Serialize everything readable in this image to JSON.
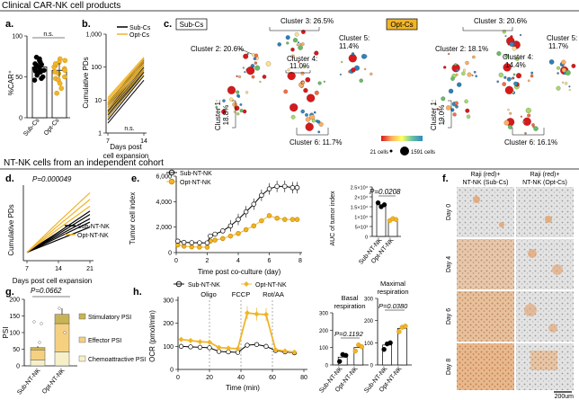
{
  "figure": {
    "section1_title": "Clinical CAR-NK cell products",
    "section2_title": "NT-NK cells from an independent cohort",
    "colors": {
      "sub": "#000000",
      "opt": "#f0b429",
      "gray": "#999999"
    }
  },
  "panels": {
    "a": {
      "label": "a.",
      "ylabel": "%CAR⁺",
      "sig": "n.s."
    },
    "b": {
      "label": "b.",
      "ylabel": "Cumulative PDs",
      "xlabel_1": "Days post",
      "xlabel_2": "cell expansion",
      "sig": "n.s.",
      "legend": [
        "Sub-Cs",
        "Opt-Cs"
      ]
    },
    "c": {
      "label": "c.",
      "sub_tag": "Sub-Cs",
      "opt_tag": "Opt-Cs",
      "sub_clusters": [
        "Cluster 1:",
        "18.8%",
        "Cluster 2: 20.6%",
        "Cluster 3: 26.5%",
        "Cluster 4:",
        "11.0%",
        "Cluster 5:",
        "11.4%",
        "Cluster 6: 11.7%"
      ],
      "opt_clusters": [
        "Cluster 1:",
        "19.0%",
        "Cluster 2: 18.1%",
        "Cluster 3: 20.6%",
        "Cluster 4:",
        "14.4%",
        "Cluster 5:",
        "11.7%",
        "Cluster 6: 16.1%"
      ],
      "size_legend_min": "21 cells",
      "size_legend_max": "1591 cells"
    },
    "d": {
      "label": "d.",
      "pvalue": "P=0.000049",
      "ylabel": "Cumulative PDs",
      "xlabel": "Days post cell expansion",
      "legend": [
        "Sub-NT-NK",
        "Opt-NT-NK"
      ]
    },
    "e": {
      "label": "e.",
      "legend": [
        "Sub-NT-NK",
        "Opt-NT-NK"
      ],
      "ylabel": "Tumor cell index",
      "xlabel": "Time post co-culture (day)",
      "auc_ylabel": "AUC of tumor index",
      "auc_pvalue": "P=0.0208"
    },
    "f": {
      "label": "f.",
      "col1_line1": "Raji (red)+",
      "col1_line2": "NT-NK (Sub-Cs)",
      "col2_line1": "Raji (red)+",
      "col2_line2": "NT-NK (Opt-Cs)",
      "rows": [
        "Day 0",
        "Day 4",
        "Day 6",
        "Day 8"
      ],
      "scalebar": "200um"
    },
    "g": {
      "label": "g.",
      "pvalue": "P=0.0662",
      "ylabel": "PSI",
      "legend": [
        "Stimulatory PSI",
        "Effector PSI",
        "Chemoattractive PSI"
      ]
    },
    "h": {
      "label": "h.",
      "legend": [
        "Sub-NT-NK",
        "Opt-NT-NK"
      ],
      "ylabel": "OCR (pmol/min)",
      "xlabel": "Time (min)",
      "injections": [
        "Oligo",
        "FCCP",
        "Rot/AA"
      ],
      "basal_title": "Basal",
      "basal_title2": "respiration",
      "basal_pvalue": "P=0.1192",
      "maximal_title": "Maximal",
      "maximal_title2": "respiration",
      "maximal_pvalue": "P=0.0380"
    }
  },
  "chart_data": [
    {
      "panel": "a",
      "type": "bar",
      "categories": [
        "Sub-Cs",
        "Opt-Cs"
      ],
      "values": [
        62,
        58
      ],
      "points": [
        [
          70,
          68,
          66,
          64,
          62,
          60,
          60,
          58,
          56,
          55,
          52,
          50,
          48,
          46,
          72,
          74,
          65,
          57
        ],
        [
          72,
          68,
          64,
          62,
          60,
          58,
          56,
          54,
          50,
          48,
          46,
          42,
          36,
          30,
          66,
          70
        ]
      ],
      "ylabel": "%CAR⁺",
      "ylim": [
        0,
        100
      ],
      "yticks": [
        0,
        50,
        100
      ]
    },
    {
      "panel": "b",
      "type": "line",
      "x": [
        7,
        14
      ],
      "series": [
        {
          "name": "Sub-Cs",
          "starts": [
            2,
            2.5,
            3,
            3.5,
            4,
            4.5,
            5,
            6,
            7,
            8
          ],
          "ends": [
            40,
            55,
            70,
            80,
            90,
            100,
            120,
            140,
            160,
            180
          ]
        },
        {
          "name": "Opt-Cs",
          "starts": [
            3,
            4,
            5,
            6,
            7,
            8,
            9,
            10,
            11,
            12
          ],
          "ends": [
            60,
            80,
            90,
            110,
            120,
            130,
            150,
            170,
            180,
            200
          ]
        }
      ],
      "ylabel": "Cumulative PDs",
      "ylim": [
        1,
        1000
      ],
      "yticks": [
        1,
        10,
        100,
        1000
      ],
      "yscale": "log",
      "xlabel": "Days post cell expansion"
    },
    {
      "panel": "d",
      "type": "line",
      "x": [
        7,
        14,
        21
      ],
      "xticks": [
        7,
        14,
        21
      ],
      "series": [
        {
          "name": "Sub-NT-NK",
          "lines": [
            [
              1,
              2.5,
              4.0
            ],
            [
              1,
              2.8,
              4.6
            ],
            [
              1,
              3.0,
              5.0
            ],
            [
              1,
              3.2,
              5.5
            ],
            [
              1,
              3.4,
              5.9
            ]
          ]
        },
        {
          "name": "Opt-NT-NK",
          "lines": [
            [
              1,
              3.8,
              6.5
            ],
            [
              1,
              4.2,
              7.3
            ],
            [
              1,
              4.6,
              8.1
            ]
          ]
        }
      ],
      "ylabel": "Cumulative PDs",
      "ylim": [
        0,
        9
      ],
      "yticks": [],
      "xlabel": "Days post cell expansion"
    },
    {
      "panel": "e",
      "type": "line",
      "series": [
        {
          "name": "Sub-NT-NK",
          "x": [
            0.1,
            0.5,
            1.0,
            1.5,
            2.0,
            2.2,
            2.5,
            3.0,
            3.5,
            4.0,
            4.5,
            5.0,
            5.5,
            6.0,
            6.5,
            7.0,
            7.5,
            7.8
          ],
          "y": [
            900,
            800,
            780,
            770,
            760,
            1300,
            1450,
            1700,
            2100,
            2600,
            3200,
            3800,
            4500,
            5000,
            5200,
            5200,
            5100,
            5100
          ]
        },
        {
          "name": "Opt-NT-NK",
          "x": [
            0.1,
            0.5,
            1.0,
            1.5,
            2.0,
            2.2,
            2.5,
            3.0,
            3.5,
            4.0,
            4.5,
            5.0,
            5.5,
            6.0,
            6.5,
            7.0,
            7.5,
            7.8
          ],
          "y": [
            600,
            500,
            450,
            430,
            420,
            900,
            980,
            1100,
            1300,
            1500,
            1800,
            2100,
            2500,
            2900,
            2700,
            2600,
            2600,
            2600
          ]
        }
      ],
      "ylabel": "Tumor cell index",
      "ylim": [
        0,
        6000
      ],
      "yticks": [
        0,
        2000,
        4000,
        6000
      ],
      "xlabel": "Time post co-culture (day)",
      "xlim": [
        0,
        8
      ],
      "xticks": [
        0,
        2,
        4,
        6,
        8
      ]
    },
    {
      "panel": "e-auc",
      "type": "bar",
      "categories": [
        "Sub-NT-NK",
        "Opt-NT-NK"
      ],
      "values": [
        16000,
        8500
      ],
      "points": [
        [
          17000,
          15000,
          16000
        ],
        [
          8000,
          9000,
          8500
        ]
      ],
      "ylabel": "AUC of tumor index",
      "ylim": [
        0,
        25000
      ],
      "yticks": [
        0,
        5000,
        10000,
        15000,
        20000,
        25000
      ],
      "ytick_labels": [
        "0",
        "5×10³",
        "1×10⁴",
        "1.5×10⁴",
        "2×10⁴",
        "2.5×10⁴"
      ]
    },
    {
      "panel": "g",
      "type": "bar",
      "categories": [
        "Sub-NT-NK",
        "Opt-NT-NK"
      ],
      "series": [
        {
          "name": "Chemoattractive PSI",
          "values": [
            18,
            42
          ]
        },
        {
          "name": "Effector PSI",
          "values": [
            30,
            85
          ]
        },
        {
          "name": "Stimulatory PSI",
          "values": [
            7,
            28
          ]
        }
      ],
      "ylabel": "PSI",
      "ylim": [
        0,
        200
      ],
      "yticks": [
        0,
        50,
        100,
        150,
        200
      ]
    },
    {
      "panel": "h",
      "type": "line",
      "x": [
        2,
        8,
        14,
        20,
        26,
        32,
        38,
        44,
        50,
        56,
        62,
        68,
        74
      ],
      "series": [
        {
          "name": "Sub-NT-NK",
          "y": [
            100,
            98,
            96,
            94,
            78,
            76,
            74,
            105,
            108,
            100,
            82,
            76,
            72
          ]
        },
        {
          "name": "Opt-NT-NK",
          "y": [
            130,
            125,
            120,
            118,
            95,
            92,
            90,
            245,
            240,
            238,
            85,
            80,
            75
          ]
        }
      ],
      "injections_at": [
        20,
        40,
        60
      ],
      "ylabel": "OCR (pmol/min)",
      "ylim": [
        0,
        300
      ],
      "yticks": [
        0,
        100,
        200,
        300
      ],
      "xlabel": "Time (min)",
      "xlim": [
        0,
        80
      ],
      "xticks": [
        0,
        20,
        40,
        60,
        80
      ]
    },
    {
      "panel": "h-basal",
      "type": "bar",
      "categories": [
        "Sub-NT-NK",
        "Opt-NT-NK"
      ],
      "values": [
        45,
        100
      ],
      "points": [
        [
          20,
          60,
          55
        ],
        [
          80,
          115,
          105
        ]
      ],
      "ylim": [
        0,
        300
      ],
      "yticks": [
        0,
        100,
        200,
        300
      ]
    },
    {
      "panel": "h-maximal",
      "type": "bar",
      "categories": [
        "Sub-NT-NK",
        "Opt-NT-NK"
      ],
      "values": [
        90,
        165
      ],
      "points": [
        [
          70,
          95,
          100
        ],
        [
          150,
          170,
          175
        ]
      ],
      "ylim": [
        0,
        300
      ],
      "yticks": [
        0,
        100,
        200,
        300
      ]
    }
  ]
}
